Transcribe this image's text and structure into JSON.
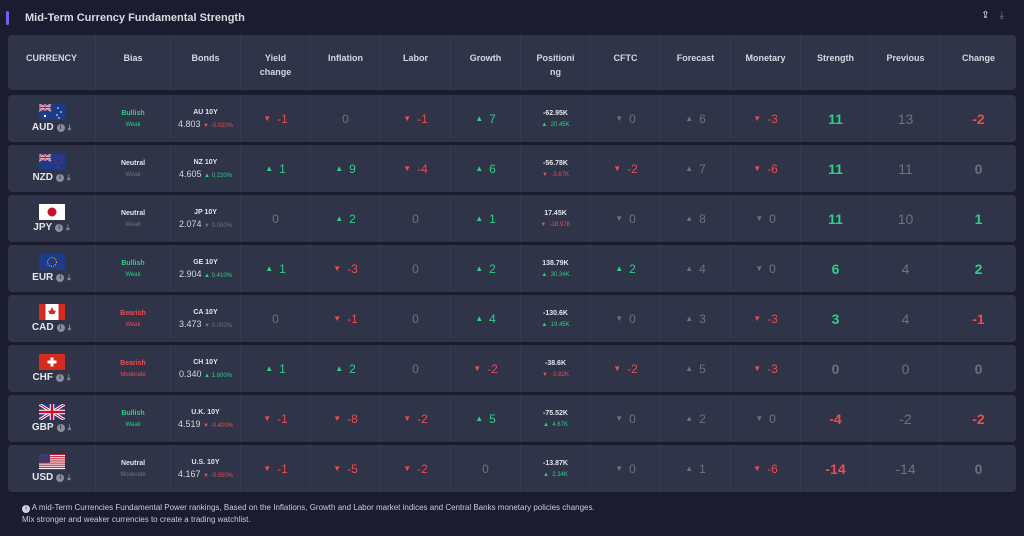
{
  "header": {
    "title": "Mid-Term Currency Fundamental Strength",
    "tools": [
      {
        "icon": "upload-icon",
        "glyph": "⇪"
      },
      {
        "icon": "download-icon",
        "glyph": "⤓"
      }
    ]
  },
  "colors": {
    "green": "#2fce86",
    "red": "#ee4b4b",
    "gray": "#6c7183",
    "accent": "#7b5cf0"
  },
  "columns": [
    "CURRENCY",
    "Bias",
    "Bonds",
    "Yield change",
    "Inflation",
    "Labor",
    "Growth",
    "Positioning",
    "CFTC",
    "Forecast",
    "Monetary",
    "Strength",
    "Previous",
    "Change"
  ],
  "rows": [
    {
      "currency": "AUD",
      "flag": "au",
      "bias": "Bullish",
      "bias_tone": "green",
      "level": "Weak",
      "level_tone": "green",
      "bond": "AU 10Y",
      "bond_value": "4.803",
      "bond_arrow": "down",
      "bond_change": "-0.020%",
      "bond_tone": "red",
      "scores": [
        {
          "arrow": "down",
          "value": "-1",
          "tone": "red"
        },
        {
          "arrow": "",
          "value": "0",
          "tone": "gray"
        },
        {
          "arrow": "down",
          "value": "-1",
          "tone": "red"
        },
        {
          "arrow": "up",
          "value": "7",
          "tone": "green"
        }
      ],
      "positioning": "-62.95K",
      "pos_arrow": "up",
      "pos_change": "20.45K",
      "pos_tone": "green",
      "cftc": {
        "arrow": "down",
        "value": "0",
        "tone": "gray"
      },
      "forecast": {
        "arrow": "up",
        "value": "6",
        "tone": "gray"
      },
      "monetary": {
        "arrow": "down",
        "value": "-3",
        "tone": "red"
      },
      "strength": "11",
      "strength_tone": "green",
      "previous": "13",
      "change": "-2",
      "change_tone": "red"
    },
    {
      "currency": "NZD",
      "flag": "nz",
      "bias": "Neutral",
      "bias_tone": "white",
      "level": "Weak",
      "level_tone": "dgray",
      "bond": "NZ 10Y",
      "bond_value": "4.605",
      "bond_arrow": "up",
      "bond_change": "0.220%",
      "bond_tone": "green",
      "scores": [
        {
          "arrow": "up",
          "value": "1",
          "tone": "green"
        },
        {
          "arrow": "up",
          "value": "9",
          "tone": "green"
        },
        {
          "arrow": "down",
          "value": "-4",
          "tone": "red"
        },
        {
          "arrow": "up",
          "value": "6",
          "tone": "green"
        }
      ],
      "positioning": "-56.78K",
      "pos_arrow": "down",
      "pos_change": "-3.67K",
      "pos_tone": "red",
      "cftc": {
        "arrow": "down",
        "value": "-2",
        "tone": "red"
      },
      "forecast": {
        "arrow": "up",
        "value": "7",
        "tone": "gray"
      },
      "monetary": {
        "arrow": "down",
        "value": "-6",
        "tone": "red"
      },
      "strength": "11",
      "strength_tone": "green",
      "previous": "11",
      "change": "0",
      "change_tone": "gray"
    },
    {
      "currency": "JPY",
      "flag": "jp",
      "bias": "Neutral",
      "bias_tone": "white",
      "level": "Weak",
      "level_tone": "dgray",
      "bond": "JP 10Y",
      "bond_value": "2.074",
      "bond_arrow": "down",
      "bond_change": "0.000%",
      "bond_tone": "gray",
      "scores": [
        {
          "arrow": "",
          "value": "0",
          "tone": "gray"
        },
        {
          "arrow": "up",
          "value": "2",
          "tone": "green"
        },
        {
          "arrow": "",
          "value": "0",
          "tone": "gray"
        },
        {
          "arrow": "up",
          "value": "1",
          "tone": "green"
        }
      ],
      "positioning": "17.45K",
      "pos_arrow": "down",
      "pos_change": "-18.97K",
      "pos_tone": "red",
      "cftc": {
        "arrow": "down",
        "value": "0",
        "tone": "gray"
      },
      "forecast": {
        "arrow": "up",
        "value": "8",
        "tone": "gray"
      },
      "monetary": {
        "arrow": "down",
        "value": "0",
        "tone": "gray"
      },
      "strength": "11",
      "strength_tone": "green",
      "previous": "10",
      "change": "1",
      "change_tone": "green"
    },
    {
      "currency": "EUR",
      "flag": "eu",
      "bias": "Bullish",
      "bias_tone": "green",
      "level": "Weak",
      "level_tone": "green",
      "bond": "GE 10Y",
      "bond_value": "2.904",
      "bond_arrow": "up",
      "bond_change": "0.410%",
      "bond_tone": "green",
      "scores": [
        {
          "arrow": "up",
          "value": "1",
          "tone": "green"
        },
        {
          "arrow": "down",
          "value": "-3",
          "tone": "red"
        },
        {
          "arrow": "",
          "value": "0",
          "tone": "gray"
        },
        {
          "arrow": "up",
          "value": "2",
          "tone": "green"
        }
      ],
      "positioning": "138.79K",
      "pos_arrow": "up",
      "pos_change": "30.34K",
      "pos_tone": "green",
      "cftc": {
        "arrow": "up",
        "value": "2",
        "tone": "green"
      },
      "forecast": {
        "arrow": "up",
        "value": "4",
        "tone": "gray"
      },
      "monetary": {
        "arrow": "down",
        "value": "0",
        "tone": "gray"
      },
      "strength": "6",
      "strength_tone": "green",
      "previous": "4",
      "change": "2",
      "change_tone": "green"
    },
    {
      "currency": "CAD",
      "flag": "ca",
      "bias": "Bearish",
      "bias_tone": "red",
      "level": "Weak",
      "level_tone": "red",
      "bond": "CA 10Y",
      "bond_value": "3.473",
      "bond_arrow": "down",
      "bond_change": "0.000%",
      "bond_tone": "gray",
      "scores": [
        {
          "arrow": "",
          "value": "0",
          "tone": "gray"
        },
        {
          "arrow": "down",
          "value": "-1",
          "tone": "red"
        },
        {
          "arrow": "",
          "value": "0",
          "tone": "gray"
        },
        {
          "arrow": "up",
          "value": "4",
          "tone": "green"
        }
      ],
      "positioning": "-130.6K",
      "pos_arrow": "up",
      "pos_change": "19.45K",
      "pos_tone": "green",
      "cftc": {
        "arrow": "down",
        "value": "0",
        "tone": "gray"
      },
      "forecast": {
        "arrow": "up",
        "value": "3",
        "tone": "gray"
      },
      "monetary": {
        "arrow": "down",
        "value": "-3",
        "tone": "red"
      },
      "strength": "3",
      "strength_tone": "green",
      "previous": "4",
      "change": "-1",
      "change_tone": "red"
    },
    {
      "currency": "CHF",
      "flag": "ch",
      "bias": "Bearish",
      "bias_tone": "red",
      "level": "Moderate",
      "level_tone": "red",
      "bond": "CH 10Y",
      "bond_value": "0.340",
      "bond_arrow": "up",
      "bond_change": "1.800%",
      "bond_tone": "green",
      "scores": [
        {
          "arrow": "up",
          "value": "1",
          "tone": "green"
        },
        {
          "arrow": "up",
          "value": "2",
          "tone": "green"
        },
        {
          "arrow": "",
          "value": "0",
          "tone": "gray"
        },
        {
          "arrow": "down",
          "value": "-2",
          "tone": "red"
        }
      ],
      "positioning": "-38.6K",
      "pos_arrow": "down",
      "pos_change": "-2.82K",
      "pos_tone": "red",
      "cftc": {
        "arrow": "down",
        "value": "-2",
        "tone": "red"
      },
      "forecast": {
        "arrow": "up",
        "value": "5",
        "tone": "gray"
      },
      "monetary": {
        "arrow": "down",
        "value": "-3",
        "tone": "red"
      },
      "strength": "0",
      "strength_tone": "gray",
      "previous": "0",
      "change": "0",
      "change_tone": "gray"
    },
    {
      "currency": "GBP",
      "flag": "gb",
      "bias": "Bullish",
      "bias_tone": "green",
      "level": "Weak",
      "level_tone": "green",
      "bond": "U.K. 10Y",
      "bond_value": "4.519",
      "bond_arrow": "down",
      "bond_change": "-0.400%",
      "bond_tone": "red",
      "scores": [
        {
          "arrow": "down",
          "value": "-1",
          "tone": "red"
        },
        {
          "arrow": "down",
          "value": "-8",
          "tone": "red"
        },
        {
          "arrow": "down",
          "value": "-2",
          "tone": "red"
        },
        {
          "arrow": "up",
          "value": "5",
          "tone": "green"
        }
      ],
      "positioning": "-75.52K",
      "pos_arrow": "up",
      "pos_change": "4.67K",
      "pos_tone": "green",
      "cftc": {
        "arrow": "down",
        "value": "0",
        "tone": "gray"
      },
      "forecast": {
        "arrow": "up",
        "value": "2",
        "tone": "gray"
      },
      "monetary": {
        "arrow": "down",
        "value": "0",
        "tone": "gray"
      },
      "strength": "-4",
      "strength_tone": "red",
      "previous": "-2",
      "change": "-2",
      "change_tone": "red"
    },
    {
      "currency": "USD",
      "flag": "us",
      "bias": "Neutral",
      "bias_tone": "white",
      "level": "Moderate",
      "level_tone": "dgray",
      "bond": "U.S. 10Y",
      "bond_value": "4.167",
      "bond_arrow": "down",
      "bond_change": "-0.050%",
      "bond_tone": "red",
      "scores": [
        {
          "arrow": "down",
          "value": "-1",
          "tone": "red"
        },
        {
          "arrow": "down",
          "value": "-5",
          "tone": "red"
        },
        {
          "arrow": "down",
          "value": "-2",
          "tone": "red"
        },
        {
          "arrow": "",
          "value": "0",
          "tone": "gray"
        }
      ],
      "positioning": "-13.87K",
      "pos_arrow": "up",
      "pos_change": "2.34K",
      "pos_tone": "green",
      "cftc": {
        "arrow": "down",
        "value": "0",
        "tone": "gray"
      },
      "forecast": {
        "arrow": "up",
        "value": "1",
        "tone": "gray"
      },
      "monetary": {
        "arrow": "down",
        "value": "-6",
        "tone": "red"
      },
      "strength": "-14",
      "strength_tone": "red",
      "previous": "-14",
      "change": "0",
      "change_tone": "gray"
    }
  ],
  "footer": {
    "line1": "A mid-Term Currencies Fundamental Power rankings, Based on the Inflations, Growth and Labor market indices and Central Banks monetary policies changes.",
    "line2": "Mix stronger and weaker currencies to create a trading watchlist."
  }
}
